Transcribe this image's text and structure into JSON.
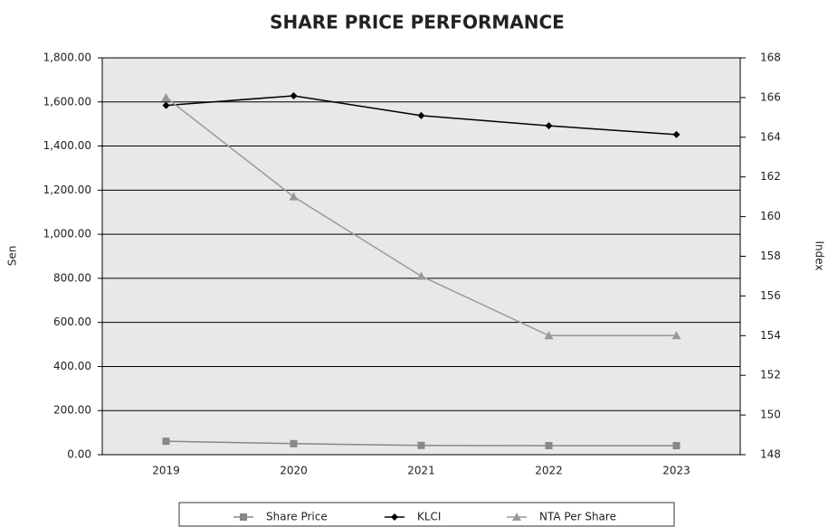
{
  "chart_data": {
    "type": "line",
    "title": "SHARE PRICE PERFORMANCE",
    "y_label": "Sen",
    "y2_label": "Index",
    "categories": [
      "2019",
      "2020",
      "2021",
      "2022",
      "2023"
    ],
    "series": [
      {
        "name": "Share Price",
        "color": "#888888",
        "marker": "square",
        "values": [
          61,
          50,
          42,
          41,
          41
        ]
      },
      {
        "name": "KLCI",
        "color": "#000000",
        "marker": "diamond",
        "values": [
          1584,
          1628,
          1538,
          1492,
          1452
        ]
      },
      {
        "name": "NTA Per Share",
        "color": "#999999",
        "marker": "triangle",
        "axis": "y2",
        "values": [
          166,
          161,
          157,
          154,
          154
        ]
      }
    ],
    "ylim": [
      0,
      1800
    ],
    "yticks": [
      {
        "value": 0,
        "label": "0.00"
      },
      {
        "value": 200,
        "label": "200.00"
      },
      {
        "value": 400,
        "label": "400.00"
      },
      {
        "value": 600,
        "label": "600.00"
      },
      {
        "value": 800,
        "label": "800.00"
      },
      {
        "value": 1000,
        "label": "1,000.00"
      },
      {
        "value": 1200,
        "label": "1,200.00"
      },
      {
        "value": 1400,
        "label": "1,400.00"
      },
      {
        "value": 1600,
        "label": "1,600.00"
      },
      {
        "value": 1800,
        "label": "1,800.00"
      }
    ],
    "y2lim": [
      148,
      168
    ],
    "y2ticks": [
      148,
      150,
      152,
      154,
      156,
      158,
      160,
      162,
      164,
      166,
      168
    ],
    "grid": true,
    "legend": "bottom"
  }
}
